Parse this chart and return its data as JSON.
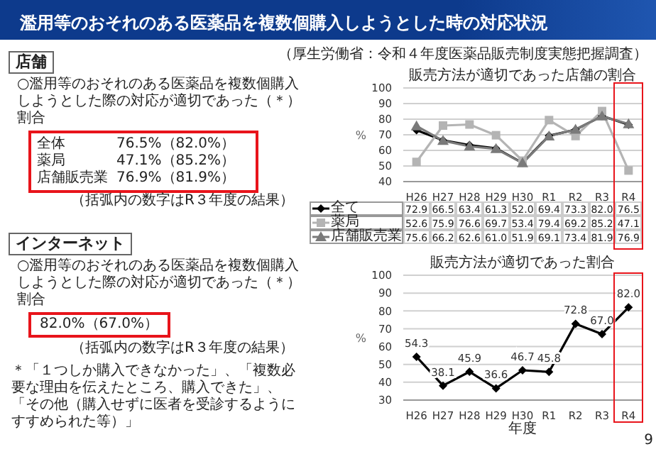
{
  "chart_data": [
    {
      "type": "line",
      "title": "販売方法が適切であった店舗の割合",
      "ylabel": "%",
      "annotations": [
        "濫用等のおそれのある医薬品を複数個購入しようとした時の対応状況",
        "（厚生労働省：令和４年度医薬品販売制度実態把握調査）",
        "店舗",
        "○濫用等のおそれのある医薬品を複数個購入しようとした際の対応が適切であった（＊）割合",
        "全体 76.5%（82.0%）",
        "薬局 47.1%（85.2%）",
        "店舗販売業 76.9%（81.9%）",
        "（括弧内の数字はR３年度の結果）"
      ],
      "categories": [
        "H26",
        "H27",
        "H28",
        "H29",
        "H30",
        "R1",
        "R2",
        "R3",
        "R4"
      ],
      "series": [
        {
          "name": "全て",
          "color": "#000000",
          "marker": "diamond",
          "values": [
            72.9,
            66.5,
            63.4,
            61.3,
            52.0,
            69.4,
            73.3,
            82.0,
            76.5
          ],
          "value_labels": [
            "72.9",
            "66.5",
            "63.4",
            "61.3",
            "52.0",
            "69.4",
            "73.3",
            "82.0",
            "76.5"
          ]
        },
        {
          "name": "薬局",
          "color": "#b4b4b4",
          "marker": "square",
          "values": [
            52.6,
            75.9,
            76.6,
            69.7,
            53.4,
            79.4,
            69.2,
            85.2,
            47.1
          ],
          "value_labels": [
            "52.6",
            "75.9",
            "76.6",
            "69.7",
            "53.4",
            "79.4",
            "69.2",
            "85.2",
            "47.1"
          ]
        },
        {
          "name": "店舗販売業",
          "color": "#7a7a7a",
          "marker": "triangle",
          "values": [
            75.6,
            66.2,
            62.6,
            61.0,
            51.9,
            69.1,
            73.4,
            81.9,
            76.9
          ],
          "value_labels": [
            "75.6",
            "66.2",
            "62.6",
            "61.0",
            "51.9",
            "69.1",
            "73.4",
            "81.9",
            "76.9"
          ]
        }
      ],
      "ylim": [
        40,
        100
      ],
      "yticks": [
        40,
        50,
        60,
        70,
        80,
        90,
        100
      ],
      "grid": "y",
      "legend": "bottom left"
    },
    {
      "type": "line",
      "title": "販売方法が適切であった割合",
      "xlabel": "年度",
      "ylabel": "%",
      "annotations": [
        "インターネット",
        "○濫用等のおそれのある医薬品を複数個購入しようとした際の対応が適切であった（＊）割合",
        "82.0%（67.0%）",
        "（括弧内の数字はR３年度の結果）",
        "＊「１つしか購入できなかった」、「複数必要な理由を伝えたところ、購入できた」、「その他（購入せずに医者を受診するようにすすめられた等）」",
        "9"
      ],
      "categories": [
        "H26",
        "H27",
        "H28",
        "H29",
        "H30",
        "R1",
        "R2",
        "R3",
        "R4"
      ],
      "values": [
        54.3,
        38.1,
        45.9,
        36.6,
        46.7,
        45.8,
        72.8,
        67.0,
        82.0
      ],
      "value_labels": [
        "54.3",
        "38.1",
        "45.9",
        "36.6",
        "46.7",
        "45.8",
        "72.8",
        "67.0",
        "82.0"
      ],
      "color": "#000000",
      "marker": "diamond",
      "ylim": [
        30,
        100
      ],
      "yticks": [
        30,
        40,
        50,
        60,
        70,
        80,
        90,
        100
      ],
      "grid": "y"
    }
  ]
}
